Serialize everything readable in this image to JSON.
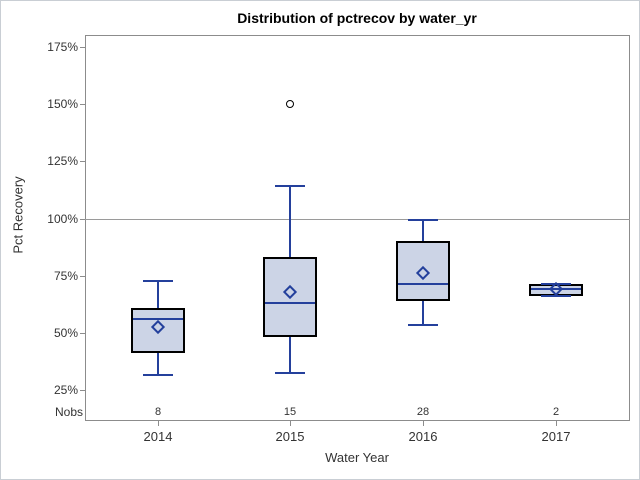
{
  "chart_data": {
    "type": "boxplot",
    "title": "Distribution of pctrecov by water_yr",
    "xlabel": "Water Year",
    "ylabel": "Pct Recovery",
    "nobs_row_label": "Nobs",
    "categories": [
      "2014",
      "2015",
      "2016",
      "2017"
    ],
    "nobs": [
      "8",
      "15",
      "28",
      "2"
    ],
    "yticks": [
      "175%",
      "150%",
      "125%",
      "100%",
      "75%",
      "50%",
      "25%"
    ],
    "ytick_values": [
      175,
      150,
      125,
      100,
      75,
      50,
      25
    ],
    "ylim": [
      10,
      180
    ],
    "grid": "off",
    "legend": "none",
    "reference_line_value": 100,
    "series": [
      {
        "category": "2014",
        "n": 8,
        "whisker_low": 31.5,
        "q1": 41,
        "median": 56,
        "q3": 61,
        "whisker_high": 72.5,
        "mean": 52.5,
        "outliers": []
      },
      {
        "category": "2015",
        "n": 15,
        "whisker_low": 32.5,
        "q1": 48,
        "median": 63,
        "q3": 83,
        "whisker_high": 114,
        "mean": 68,
        "outliers": [
          150
        ]
      },
      {
        "category": "2016",
        "n": 28,
        "whisker_low": 53.5,
        "q1": 64,
        "median": 71.5,
        "q3": 90,
        "whisker_high": 99.5,
        "mean": 76,
        "outliers": []
      },
      {
        "category": "2017",
        "n": 2,
        "whisker_low": 66,
        "q1": 66,
        "median": 69,
        "q3": 71.5,
        "whisker_high": 71.5,
        "mean": 69,
        "outliers": []
      }
    ],
    "colors": {
      "box_fill": "#ccd4e6",
      "box_border": "#000000",
      "line_blue": "#24409c",
      "outlier_border": "#000000",
      "frame_gray": "#8c8c8c",
      "ref_line_gray": "#9a9a9a",
      "text": "#333333"
    }
  }
}
